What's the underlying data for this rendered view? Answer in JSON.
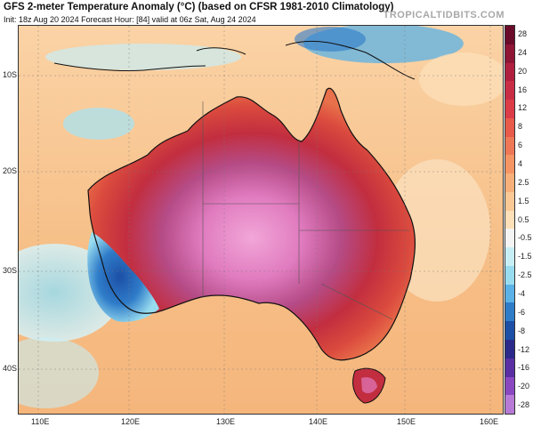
{
  "header": {
    "title": "GFS 2-meter Temperature Anomaly (°C) (based on CFSR 1981-2010 Climatology)",
    "subtitle": "Init: 18z Aug 20 2024   Forecast Hour: [84]   valid at 06z Sat, Aug 24 2024",
    "brand": "TROPICALTIDBITS.COM"
  },
  "map": {
    "lat_labels": [
      "10S",
      "20S",
      "30S",
      "40S"
    ],
    "lon_labels": [
      "110E",
      "120E",
      "130E",
      "140E",
      "150E",
      "160E"
    ]
  },
  "colorbar": {
    "labels": [
      "28",
      "24",
      "20",
      "16",
      "12",
      "8",
      "6",
      "4",
      "2.5",
      "1.5",
      "0.5",
      "-0.5",
      "-1.5",
      "-2.5",
      "-4",
      "-6",
      "-8",
      "-12",
      "-16",
      "-20",
      "-28"
    ],
    "colors": [
      "#6a0b2a",
      "#8f1535",
      "#b0203e",
      "#c92d45",
      "#dc3b48",
      "#e85a4a",
      "#ee7755",
      "#f59563",
      "#f8b07a",
      "#fbc996",
      "#fddfb8",
      "#f4f4f4",
      "#c8eef5",
      "#98dcef",
      "#5ab2e6",
      "#2f7cc9",
      "#1c4fa6",
      "#2b2a8a",
      "#5a2fa4",
      "#8a48c0",
      "#b77ad6"
    ]
  }
}
